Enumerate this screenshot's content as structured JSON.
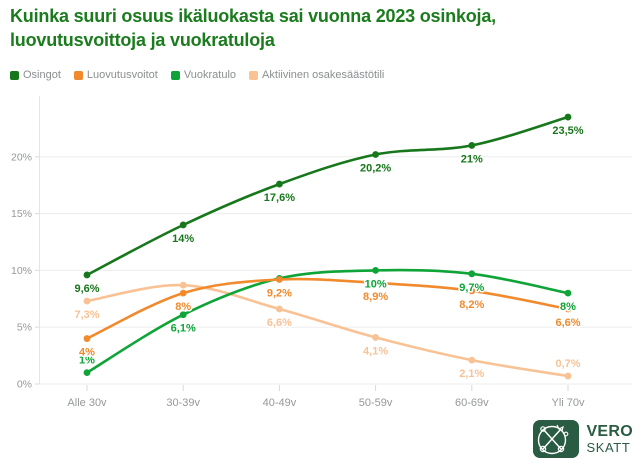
{
  "title": "Kuinka suuri osuus ikäluokasta sai vuonna 2023 osinkoja, luovutusvoittoja ja vuokratuloja",
  "legend": {
    "items": [
      {
        "label": "Osingot",
        "color": "#17771b"
      },
      {
        "label": "Luovutusvoitot",
        "color": "#f18a2d"
      },
      {
        "label": "Vuokratulo",
        "color": "#0fa437"
      },
      {
        "label": "Aktiivinen osakesäästötili",
        "color": "#f9c294"
      }
    ]
  },
  "chart_data": {
    "type": "line",
    "title": "Kuinka suuri osuus ikäluokasta sai vuonna 2023 osinkoja, luovutusvoittoja ja vuokratuloja",
    "categories": [
      "Alle 30v",
      "30-39v",
      "40-49v",
      "50-59v",
      "60-69v",
      "Yli 70v"
    ],
    "xlabel": "",
    "ylabel": "",
    "ylim": [
      0,
      25
    ],
    "yticks": [
      "0%",
      "5%",
      "10%",
      "15%",
      "20%"
    ],
    "ytick_values": [
      0,
      5,
      10,
      15,
      20
    ],
    "grid": true,
    "legend_position": "top",
    "series": [
      {
        "name": "Osingot",
        "color": "#17771b",
        "values": [
          9.6,
          14,
          17.6,
          20.2,
          21,
          23.5
        ],
        "labels": [
          "9,6%",
          "14%",
          "17,6%",
          "20,2%",
          "21%",
          "23,5%"
        ],
        "label_positions": [
          "below",
          "below",
          "below",
          "below",
          "below",
          "below"
        ]
      },
      {
        "name": "Luovutusvoitot",
        "color": "#f18a2d",
        "values": [
          4,
          8,
          9.2,
          8.9,
          8.2,
          6.6
        ],
        "labels": [
          "4%",
          "8%",
          "9,2%",
          "8,9%",
          "8,2%",
          "6,6%"
        ],
        "label_positions": [
          "below",
          "below",
          "below",
          "below",
          "below",
          "below"
        ]
      },
      {
        "name": "Vuokratulo",
        "color": "#0fa437",
        "values": [
          1,
          6.1,
          9.3,
          10,
          9.7,
          8
        ],
        "labels": [
          "1%",
          "6,1%",
          "",
          "10%",
          "9,7%",
          "8%"
        ],
        "label_positions": [
          "above",
          "below",
          "below",
          "below",
          "below",
          "below"
        ]
      },
      {
        "name": "Aktiivinen osakesäästötili",
        "color": "#f9c294",
        "values": [
          7.3,
          8.7,
          6.6,
          4.1,
          2.1,
          0.7
        ],
        "labels": [
          "7,3%",
          "",
          "6,6%",
          "4,1%",
          "2,1%",
          "0,7%"
        ],
        "label_positions": [
          "below",
          "below",
          "below",
          "below",
          "below",
          "above"
        ]
      }
    ]
  },
  "logo": {
    "line1": "VERO",
    "line2": "SKATT"
  },
  "colors": {
    "title_green": "#1b7c1d",
    "logo_green": "#2a5c43",
    "axis_text": "#95989a",
    "gridline": "#ededed",
    "axis_line": "#e4e4e4",
    "background": "#ffffff"
  }
}
